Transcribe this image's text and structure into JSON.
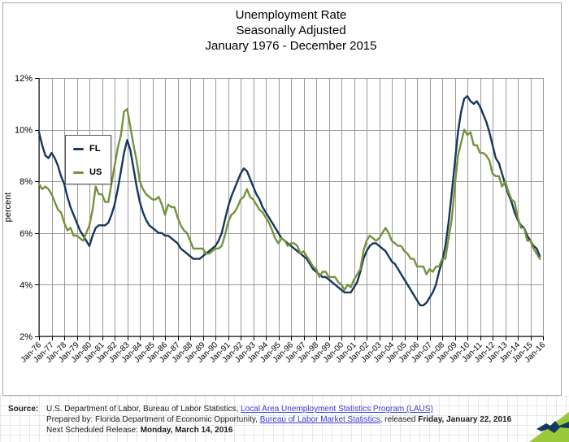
{
  "title": {
    "line1": "Unemployment Rate",
    "line2": "Seasonally Adjusted",
    "line3": "January 1976 - December 2015"
  },
  "chart_data": {
    "type": "line",
    "title": "Unemployment Rate, Seasonally Adjusted, January 1976 - December 2015",
    "xlabel": "",
    "ylabel": "percent",
    "ylim": [
      2,
      12
    ],
    "grid": true,
    "legend_position": "upper-left",
    "y_ticks": [
      "2%",
      "4%",
      "6%",
      "8%",
      "10%",
      "12%"
    ],
    "x_ticks": [
      "Jan-76",
      "Jan-77",
      "Jan-78",
      "Jan-79",
      "Jan-80",
      "Jan-81",
      "Jan-82",
      "Jan-83",
      "Jan-84",
      "Jan-85",
      "Jan-86",
      "Jan-87",
      "Jan-88",
      "Jan-89",
      "Jan-90",
      "Jan-91",
      "Jan-92",
      "Jan-93",
      "Jan-94",
      "Jan-95",
      "Jan-96",
      "Jan-97",
      "Jan-98",
      "Jan-99",
      "Jan-00",
      "Jan-01",
      "Jan-02",
      "Jan-03",
      "Jan-04",
      "Jan-05",
      "Jan-06",
      "Jan-07",
      "Jan-08",
      "Jan-09",
      "Jan-10",
      "Jan-11",
      "Jan-12",
      "Jan-13",
      "Jan-14",
      "Jan-15",
      "Jan-16"
    ],
    "x_start_year": 1976,
    "points_per_year": 4,
    "series": [
      {
        "name": "FL",
        "color": "#17375e",
        "values": [
          9.9,
          9.4,
          9.0,
          8.9,
          9.1,
          8.9,
          8.6,
          8.2,
          7.9,
          7.4,
          7.0,
          6.7,
          6.4,
          6.1,
          5.9,
          5.7,
          5.5,
          5.9,
          6.2,
          6.3,
          6.3,
          6.3,
          6.4,
          6.7,
          7.1,
          7.7,
          8.4,
          9.1,
          9.6,
          9.2,
          8.5,
          7.8,
          7.2,
          6.8,
          6.5,
          6.3,
          6.2,
          6.1,
          6.0,
          6.0,
          5.9,
          5.9,
          5.8,
          5.7,
          5.6,
          5.4,
          5.3,
          5.2,
          5.1,
          5.0,
          5.0,
          5.0,
          5.1,
          5.2,
          5.3,
          5.4,
          5.5,
          5.7,
          6.0,
          6.5,
          7.0,
          7.4,
          7.7,
          8.0,
          8.3,
          8.5,
          8.4,
          8.1,
          7.8,
          7.5,
          7.3,
          7.0,
          6.8,
          6.6,
          6.4,
          6.2,
          6.0,
          5.8,
          5.7,
          5.6,
          5.5,
          5.4,
          5.3,
          5.2,
          5.1,
          5.0,
          4.8,
          4.6,
          4.5,
          4.4,
          4.3,
          4.3,
          4.2,
          4.1,
          4.0,
          3.9,
          3.8,
          3.7,
          3.7,
          3.7,
          3.9,
          4.1,
          4.5,
          5.0,
          5.3,
          5.5,
          5.6,
          5.6,
          5.5,
          5.4,
          5.3,
          5.1,
          4.9,
          4.8,
          4.6,
          4.4,
          4.2,
          4.0,
          3.8,
          3.6,
          3.4,
          3.2,
          3.2,
          3.3,
          3.5,
          3.7,
          4.0,
          4.5,
          4.9,
          5.5,
          6.4,
          7.5,
          8.7,
          9.9,
          10.7,
          11.2,
          11.3,
          11.1,
          11.0,
          11.1,
          10.9,
          10.6,
          10.3,
          9.9,
          9.4,
          8.9,
          8.7,
          8.3,
          7.9,
          7.5,
          7.2,
          6.8,
          6.5,
          6.3,
          6.2,
          5.9,
          5.7,
          5.5,
          5.4,
          5.1
        ]
      },
      {
        "name": "US",
        "color": "#76923c",
        "values": [
          7.9,
          7.7,
          7.8,
          7.7,
          7.5,
          7.2,
          6.9,
          6.8,
          6.4,
          6.1,
          6.2,
          5.9,
          5.9,
          5.8,
          5.7,
          6.0,
          6.3,
          6.9,
          7.8,
          7.5,
          7.5,
          7.2,
          7.2,
          7.9,
          8.6,
          9.3,
          9.8,
          10.7,
          10.8,
          10.1,
          9.4,
          8.8,
          8.0,
          7.7,
          7.5,
          7.4,
          7.3,
          7.3,
          7.4,
          7.1,
          6.7,
          7.1,
          7.0,
          7.0,
          6.6,
          6.3,
          6.1,
          6.0,
          5.7,
          5.4,
          5.4,
          5.4,
          5.4,
          5.2,
          5.2,
          5.3,
          5.4,
          5.4,
          5.5,
          5.9,
          6.4,
          6.7,
          6.8,
          7.0,
          7.3,
          7.4,
          7.7,
          7.4,
          7.3,
          7.1,
          6.9,
          6.8,
          6.6,
          6.4,
          6.1,
          5.8,
          5.6,
          5.8,
          5.7,
          5.5,
          5.6,
          5.6,
          5.5,
          5.2,
          5.3,
          5.1,
          4.9,
          4.7,
          4.6,
          4.3,
          4.5,
          4.5,
          4.3,
          4.3,
          4.3,
          4.1,
          4.0,
          3.8,
          4.0,
          3.9,
          4.2,
          4.4,
          4.6,
          5.3,
          5.7,
          5.9,
          5.8,
          5.7,
          5.8,
          6.0,
          6.2,
          6.0,
          5.7,
          5.6,
          5.5,
          5.5,
          5.3,
          5.2,
          5.0,
          5.0,
          4.7,
          4.7,
          4.7,
          4.4,
          4.6,
          4.5,
          4.7,
          4.7,
          5.0,
          5.0,
          5.8,
          6.5,
          7.8,
          9.0,
          9.5,
          10.0,
          9.8,
          9.9,
          9.4,
          9.4,
          9.1,
          9.1,
          9.0,
          8.8,
          8.3,
          8.2,
          8.2,
          7.8,
          8.0,
          7.6,
          7.3,
          7.2,
          6.6,
          6.2,
          6.2,
          5.7,
          5.7,
          5.4,
          5.2,
          5.0
        ]
      }
    ]
  },
  "footer": {
    "source_label": "Source:",
    "line1_pre": "U.S. Department of Labor, Bureau of Labor Statistics, ",
    "line1_link": "Local Area Unemployment Statistics Program (LAUS)",
    "line2_pre": "Prepared by: Florida Department of Economic Opportunity, ",
    "line2_link": "Bureau of Labor Market Statistics",
    "line2_mid": ", released ",
    "line2_bold": "Friday, January 22, 2016",
    "line3_pre": "Next Scheduled Release: ",
    "line3_bold": "Monday, March 14, 2016"
  },
  "colors": {
    "fl_line": "#17375e",
    "us_line": "#76923c",
    "gridline": "#9a9a9a",
    "axis": "#000000",
    "link": "#3a3ad1",
    "logo_green": "#9aca3c",
    "logo_navy": "#143a5e"
  }
}
